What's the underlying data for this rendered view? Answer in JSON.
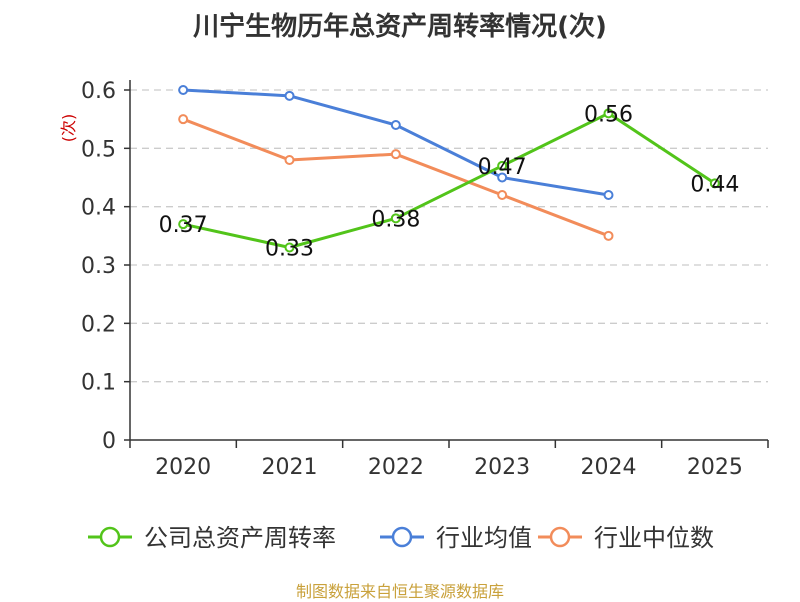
{
  "chart_data": {
    "type": "line",
    "title": "川宁生物历年总资产周转率情况(次)",
    "ylabel": "(次)",
    "xlabel": "",
    "categories": [
      "2020",
      "2021",
      "2022",
      "2023",
      "2024",
      "2025"
    ],
    "ylim": [
      0,
      0.6
    ],
    "yticks": [
      "0",
      "0.1",
      "0.2",
      "0.3",
      "0.4",
      "0.5",
      "0.6"
    ],
    "grid": true,
    "legend_position": "bottom",
    "series": [
      {
        "name": "公司总资产周转率",
        "color": "#52c41a",
        "values": [
          0.37,
          0.33,
          0.38,
          0.47,
          0.56,
          0.44
        ],
        "labels": [
          "0.37",
          "0.33",
          "0.38",
          "0.47",
          "0.56",
          "0.44"
        ]
      },
      {
        "name": "行业均值",
        "color": "#4a7fd8",
        "values": [
          0.6,
          0.59,
          0.54,
          0.45,
          0.42,
          null
        ]
      },
      {
        "name": "行业中位数",
        "color": "#f28c5a",
        "values": [
          0.55,
          0.48,
          0.49,
          0.42,
          0.35,
          null
        ]
      }
    ]
  },
  "source": "制图数据来自恒生聚源数据库"
}
